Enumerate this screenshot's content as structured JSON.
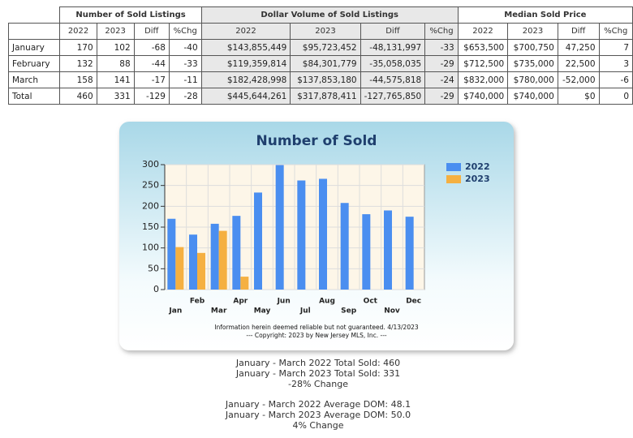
{
  "table": {
    "groups": [
      "Number of Sold Listings",
      "Dollar Volume of Sold Listings",
      "Median Sold Price"
    ],
    "subheaders": [
      "2022",
      "2023",
      "Diff",
      "%Chg",
      "2022",
      "2023",
      "Diff",
      "%Chg",
      "2022",
      "2023",
      "Diff",
      "%Chg"
    ],
    "rows": [
      [
        "January",
        "170",
        "102",
        "-68",
        "-40",
        "$143,855,449",
        "$95,723,452",
        "-48,131,997",
        "-33",
        "$653,500",
        "$700,750",
        "47,250",
        "7"
      ],
      [
        "February",
        "132",
        "88",
        "-44",
        "-33",
        "$119,359,814",
        "$84,301,779",
        "-35,058,035",
        "-29",
        "$712,500",
        "$735,000",
        "22,500",
        "3"
      ],
      [
        "March",
        "158",
        "141",
        "-17",
        "-11",
        "$182,428,998",
        "$137,853,180",
        "-44,575,818",
        "-24",
        "$832,000",
        "$780,000",
        "-52,000",
        "-6"
      ],
      [
        "Total",
        "460",
        "331",
        "-129",
        "-28",
        "$445,644,261",
        "$317,878,411",
        "-127,765,850",
        "-29",
        "$740,000",
        "$740,000",
        "$0",
        "0"
      ]
    ]
  },
  "chart_data": {
    "type": "bar",
    "title": "Number of Sold",
    "categories": [
      "Jan",
      "Feb",
      "Mar",
      "Apr",
      "May",
      "Jun",
      "Jul",
      "Aug",
      "Sep",
      "Oct",
      "Nov",
      "Dec"
    ],
    "series": [
      {
        "name": "2022",
        "color": "#4a8ef0",
        "values": [
          170,
          132,
          158,
          177,
          233,
          299,
          262,
          266,
          208,
          181,
          190,
          175
        ]
      },
      {
        "name": "2023",
        "color": "#f5b041",
        "values": [
          102,
          88,
          141,
          31,
          null,
          null,
          null,
          null,
          null,
          null,
          null,
          null
        ]
      }
    ],
    "ylim": [
      0,
      300
    ],
    "yticks": [
      0,
      50,
      100,
      150,
      200,
      250,
      300
    ],
    "grid": true,
    "legend": "right",
    "notes": [
      "Information herein deemed reliable but not guaranteed. 4/13/2023",
      "--- Copyright: 2023 by New Jersey MLS, Inc. ---"
    ]
  },
  "summary": [
    "January - March 2022 Total Sold: 460",
    "January - March 2023 Total Sold: 331",
    "-28% Change",
    "January - March 2022 Average DOM: 48.1",
    "January - March 2023 Average DOM: 50.0",
    "4% Change"
  ]
}
